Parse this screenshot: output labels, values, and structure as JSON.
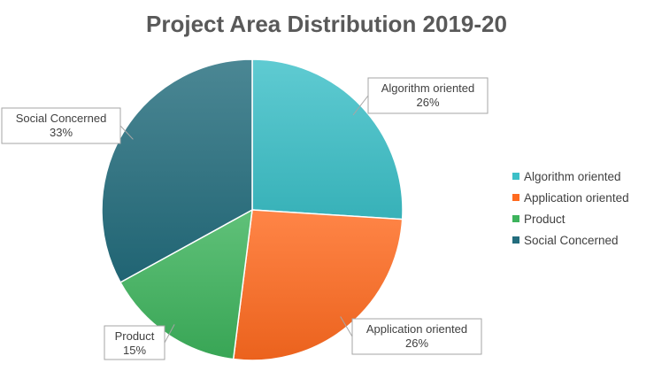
{
  "chart_data": {
    "type": "pie",
    "title": "Project Area Distribution 2019-20",
    "slices": [
      {
        "name": "Algorithm oriented",
        "value": 26,
        "label": "26%",
        "color": "#3cc0c8"
      },
      {
        "name": "Application oriented",
        "value": 26,
        "label": "26%",
        "color": "#ff6a1f"
      },
      {
        "name": "Product",
        "value": 15,
        "label": "15%",
        "color": "#3db35c"
      },
      {
        "name": "Social Concerned",
        "value": 33,
        "label": "33%",
        "color": "#236d7d"
      }
    ],
    "legend_position": "right"
  }
}
